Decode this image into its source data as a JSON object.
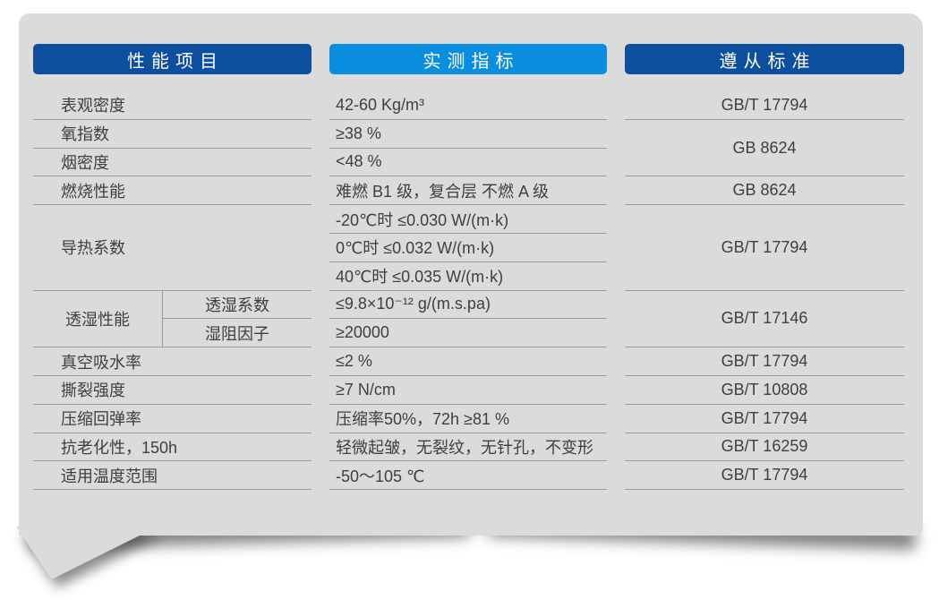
{
  "header": {
    "col1": "性能项目",
    "col2": "实测指标",
    "col3": "遵从标准"
  },
  "colors": {
    "header_dark_blue": "#0b4f9e",
    "header_light_blue": "#0a8ee0",
    "card_background": "#dbdbdb",
    "divider_line": "#9b9b9b",
    "text": "#3f3f3f"
  },
  "perf": {
    "apparent_density": {
      "label": "表观密度",
      "value": "42-60 Kg/m³",
      "standard": "GB/T 17794"
    },
    "oxygen_index": {
      "label": "氧指数",
      "value": "≥38 %"
    },
    "smoke_density": {
      "label": "烟密度",
      "value": "<48 %"
    },
    "oxygen_smoke_standard": "GB 8624",
    "burning": {
      "label": "燃烧性能",
      "value": "难燃 B1 级，复合层 不燃 A 级",
      "standard": "GB 8624"
    },
    "thermal": {
      "label": "导热系数",
      "v1": "-20℃时 ≤0.030 W/(m·k)",
      "v2": "0℃时 ≤0.032 W/(m·k)",
      "v3": "40℃时 ≤0.035 W/(m·k)",
      "standard": "GB/T 17794"
    },
    "moisture": {
      "group": "透湿性能",
      "coeff_label": "透湿系数",
      "coeff_value": "≤9.8×10⁻¹² g/(m.s.pa)",
      "factor_label": "湿阻因子",
      "factor_value": "≥20000",
      "standard": "GB/T 17146"
    },
    "vacuum_absorption": {
      "label": "真空吸水率",
      "value": "≤2 %",
      "standard": "GB/T 17794"
    },
    "tear_strength": {
      "label": "撕裂强度",
      "value": "≥7 N/cm",
      "standard": "GB/T 10808"
    },
    "compression_rebound": {
      "label": "压缩回弹率",
      "value": "压缩率50%，72h ≥81 %",
      "standard": "GB/T 17794"
    },
    "aging": {
      "label": "抗老化性，150h",
      "value": "轻微起皱，无裂纹，无针孔，不变形",
      "standard": "GB/T 16259"
    },
    "temp_range": {
      "label": "适用温度范围",
      "value": "-50～105 ℃",
      "standard": "GB/T 17794"
    }
  }
}
